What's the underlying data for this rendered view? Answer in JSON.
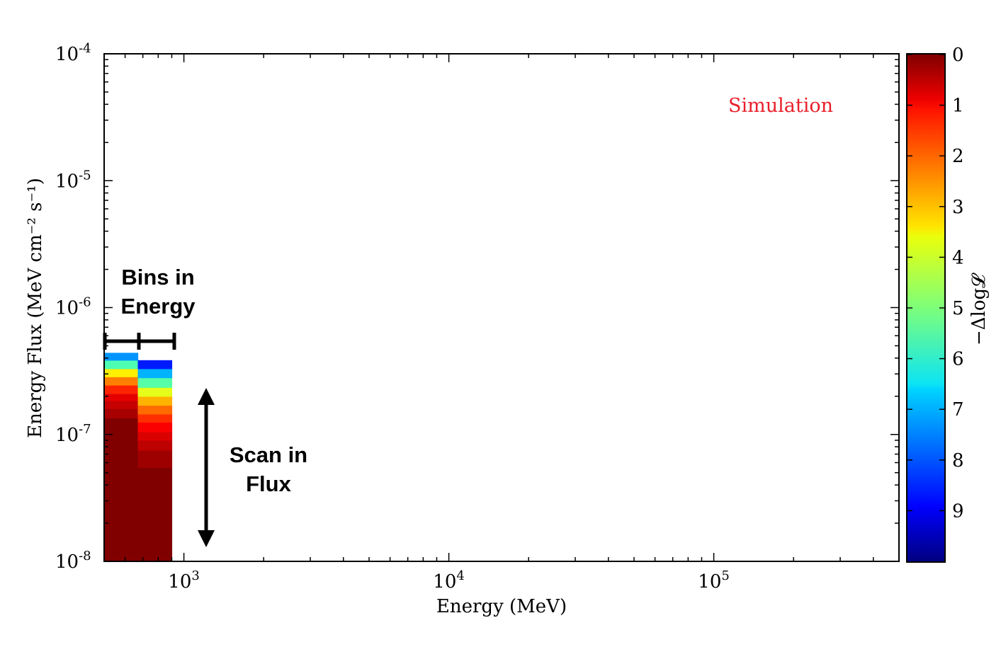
{
  "chart_data": {
    "type": "heatmap",
    "title": "",
    "xlabel": "Energy (MeV)",
    "ylabel": "Energy Flux (MeV cm⁻² s⁻¹)",
    "x_scale": "log",
    "y_scale": "log",
    "xlim": [
      500,
      500000
    ],
    "ylim": [
      1e-08,
      0.0001
    ],
    "x_ticks": [
      {
        "value": 1000,
        "base": "10",
        "exp": "3"
      },
      {
        "value": 10000,
        "base": "10",
        "exp": "4"
      },
      {
        "value": 100000,
        "base": "10",
        "exp": "5"
      }
    ],
    "y_ticks": [
      {
        "value": 1e-08,
        "base": "10",
        "exp": "-8"
      },
      {
        "value": 1e-07,
        "base": "10",
        "exp": "-7"
      },
      {
        "value": 1e-06,
        "base": "10",
        "exp": "-6"
      },
      {
        "value": 1e-05,
        "base": "10",
        "exp": "-5"
      },
      {
        "value": 0.0001,
        "base": "10",
        "exp": "-4"
      }
    ],
    "grid": false,
    "colorbar": {
      "label": "−Δlog𝓛",
      "range": [
        0,
        10
      ],
      "reversed": true,
      "ticks": [
        0,
        1,
        2,
        3,
        4,
        5,
        6,
        7,
        8,
        9
      ],
      "tick_labels": [
        "0",
        "1",
        "2",
        "3",
        "4",
        "5",
        "6",
        "7",
        "8",
        "9"
      ],
      "colormap": "jet"
    },
    "energy_bins": [
      {
        "emin": 500,
        "emax": 670
      },
      {
        "emin": 670,
        "emax": 900
      }
    ],
    "cells": [
      {
        "bin": 0,
        "flux_edges": [
          1e-08,
          1.35e-07
        ],
        "dloglike": 0.0
      },
      {
        "bin": 0,
        "flux_edges": [
          1.35e-07,
          1.6e-07
        ],
        "dloglike": 0.4
      },
      {
        "bin": 0,
        "flux_edges": [
          1.6e-07,
          1.85e-07
        ],
        "dloglike": 0.7
      },
      {
        "bin": 0,
        "flux_edges": [
          1.85e-07,
          2.1e-07
        ],
        "dloglike": 1.0
      },
      {
        "bin": 0,
        "flux_edges": [
          2.1e-07,
          2.45e-07
        ],
        "dloglike": 1.6
      },
      {
        "bin": 0,
        "flux_edges": [
          2.45e-07,
          2.85e-07
        ],
        "dloglike": 2.5
      },
      {
        "bin": 0,
        "flux_edges": [
          2.85e-07,
          3.3e-07
        ],
        "dloglike": 3.6
      },
      {
        "bin": 0,
        "flux_edges": [
          3.3e-07,
          3.85e-07
        ],
        "dloglike": 5.5
      },
      {
        "bin": 0,
        "flux_edges": [
          3.85e-07,
          4.4e-07
        ],
        "dloglike": 7.3
      },
      {
        "bin": 1,
        "flux_edges": [
          1e-08,
          5.5e-08
        ],
        "dloglike": 0.0
      },
      {
        "bin": 1,
        "flux_edges": [
          5.5e-08,
          7.5e-08
        ],
        "dloglike": 0.3
      },
      {
        "bin": 1,
        "flux_edges": [
          7.5e-08,
          9e-08
        ],
        "dloglike": 0.6
      },
      {
        "bin": 1,
        "flux_edges": [
          9e-08,
          1.05e-07
        ],
        "dloglike": 0.9
      },
      {
        "bin": 1,
        "flux_edges": [
          1.05e-07,
          1.25e-07
        ],
        "dloglike": 1.2
      },
      {
        "bin": 1,
        "flux_edges": [
          1.25e-07,
          1.45e-07
        ],
        "dloglike": 1.7
      },
      {
        "bin": 1,
        "flux_edges": [
          1.45e-07,
          1.7e-07
        ],
        "dloglike": 2.3
      },
      {
        "bin": 1,
        "flux_edges": [
          1.7e-07,
          2e-07
        ],
        "dloglike": 3.0
      },
      {
        "bin": 1,
        "flux_edges": [
          2e-07,
          2.35e-07
        ],
        "dloglike": 4.0
      },
      {
        "bin": 1,
        "flux_edges": [
          2.35e-07,
          2.8e-07
        ],
        "dloglike": 5.4
      },
      {
        "bin": 1,
        "flux_edges": [
          2.8e-07,
          3.3e-07
        ],
        "dloglike": 7.0
      },
      {
        "bin": 1,
        "flux_edges": [
          3.3e-07,
          3.85e-07
        ],
        "dloglike": 8.5
      }
    ],
    "annotations": {
      "simulation": "Simulation",
      "bins_line1": "Bins in",
      "bins_line2": "Energy",
      "scan_line1": "Scan in",
      "scan_line2": "Flux"
    },
    "colors": {
      "simulation_text": "#e8202a",
      "axes": "#000000"
    }
  }
}
